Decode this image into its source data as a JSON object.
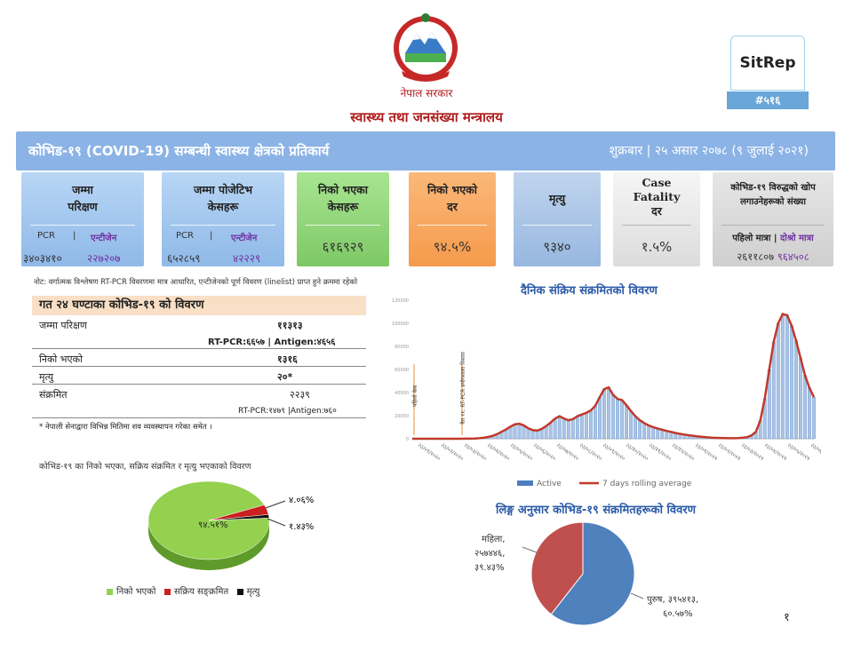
{
  "header": {
    "gov": "नेपाल सरकार",
    "ministry": "स्वास्थ्य तथा जनसंख्या मन्त्रालय"
  },
  "sitrep": {
    "label": "SitRep",
    "number": "#५१६"
  },
  "banner": {
    "title": "कोभिड-१९ (COVID-19) सम्बन्धी स्वास्थ्य क्षेत्रको प्रतिकार्य",
    "date": "शुक्रबार | २५ असार २०७८ (९ जुलाई २०२१)"
  },
  "cards": [
    {
      "h1": "जम्मा",
      "h2": "परिक्षण",
      "sub1": "PCR",
      "sub2": "एन्टीजेन",
      "v1": "३४०३४१०",
      "v2": "२२७२०७",
      "color": "#9fc5ee"
    },
    {
      "h1": "जम्मा पोजेटिभ",
      "h2": "केसहरू",
      "sub1": "PCR",
      "sub2": "एन्टीजेन",
      "v1": "६५२८५९",
      "v2": "४२२२९",
      "color": "#9fc5ee"
    },
    {
      "h1": "निको भएका",
      "h2": "केसहरू",
      "value": "६१६९२९",
      "color": "#8fd679"
    },
    {
      "h1": "निको भएको",
      "h2": "दर",
      "value": "९४.५%",
      "color": "#f9a05a"
    },
    {
      "h1": "मृत्यु",
      "h2": "",
      "value": "९३४०",
      "color": "#a7c1e4"
    },
    {
      "h1": "Case",
      "h2": "Fatality",
      "h3": "दर",
      "value": "१.५%",
      "color": "#e8e8e8"
    },
    {
      "h1": "कोभिड-१९ विरुद्धको खोप",
      "h2": "लगाउनेहरूको संख्या",
      "sub1": "पहिलो मात्रा",
      "sub2": "दोश्रो मात्रा",
      "v1": "२६११८०७",
      "v2": "९६४५०८",
      "color": "#dcdcdc"
    }
  ],
  "note": "नोट: वर्गात्मक विश्लेषण RT-PCR विवरणमा मात्र आधारित, एन्टीजेनको पूर्ण विवरण (linelist) प्राप्त हुने क्रममा रहेको",
  "table": {
    "title": "गत २४ घण्टाका कोभिड-१९ को विवरण",
    "rows": [
      {
        "label": "जम्मा परिक्षण",
        "value": "११३१३",
        "sub": "RT-PCR:६६५७ | Antigen:४६५६"
      },
      {
        "label": "निको भएको",
        "value": "१३१६"
      },
      {
        "label": "मृत्यु",
        "value": "२०*"
      },
      {
        "label": "संक्रमित",
        "value": "२२३९",
        "sub": "RT-PCR:१४७९ |Antigen:७६०"
      }
    ],
    "footnote": "* नेपाली सेनाद्वारा विभिन्न मितिमा शव व्यवस्थापन गरेका समेत ।"
  },
  "pie1": {
    "title": "कोभिड-१९ का निको भएका, सक्रिय संक्रमित र मृत्यु भएकाको विवरण",
    "legend": [
      "निको भएको",
      "सक्रिय सङ्क्रमित",
      "मृत्यु"
    ]
  },
  "linechart": {
    "title": "दैनिक संक्रिय संक्रमितको विवरण",
    "legend_active": "Active",
    "legend_avg": "7 days rolling average",
    "ann1": "पहिलो केस",
    "ann2": "चैत ११: RT-PCR प्रयोगशाला विस्तार"
  },
  "pie2": {
    "title": "लिङ्ग अनुसार कोभिड-१९ संक्रमितहरूको विवरण"
  },
  "page_number": "१",
  "chart_data": [
    {
      "type": "pie",
      "title": "कोभिड-१९ का निको भएका, सक्रिय संक्रमित र मृत्यु भएकाको विवरण",
      "slices": [
        {
          "name": "निको भएको",
          "value": 94.51,
          "label": "९४.५१%",
          "color": "#93d14f"
        },
        {
          "name": "सक्रिय सङ्क्रमित",
          "value": 4.06,
          "label": "४.०६%",
          "color": "#cc1f1f"
        },
        {
          "name": "मृत्यु",
          "value": 1.43,
          "label": "१.४३%",
          "color": "#111111"
        }
      ]
    },
    {
      "type": "area",
      "title": "दैनिक संक्रिय संक्रमितको विवरण",
      "series": [
        {
          "name": "Active",
          "color": "#4e7dbf"
        },
        {
          "name": "7 days rolling average",
          "color": "#c0392b"
        }
      ],
      "x_labels": [
        "२३/०१/२०२०",
        "२३/०२/२०२०",
        "२३/०३/२०२०",
        "२३/०४/२०२०",
        "२३/०५/२०२०",
        "२३/०६/२०२०",
        "२३/०७/२०२०",
        "२३/०८/२०२०",
        "२३/०९/२०२०",
        "२३/१०/२०२०",
        "२३/११/२०२०",
        "२३/१२/२०२०",
        "२३/०१/२०२१",
        "२३/०२/२०२१",
        "२३/०३/२०२१",
        "२३/०४/२०२१",
        "२३/०५/२०२१",
        "२३/०६/२०२१"
      ],
      "y_ticks": [
        "0",
        "20000",
        "40000",
        "60000",
        "80000",
        "100000",
        "120000"
      ],
      "ylim": [
        0,
        120000
      ],
      "values": [
        0,
        0,
        0,
        0,
        0,
        0,
        0,
        0,
        0,
        0,
        0,
        10,
        50,
        120,
        200,
        500,
        900,
        1600,
        2500,
        4000,
        6000,
        8000,
        10500,
        12500,
        13000,
        11500,
        9000,
        7500,
        7000,
        8500,
        11000,
        14000,
        17500,
        19500,
        17500,
        16000,
        17000,
        19500,
        21000,
        22500,
        24500,
        28500,
        36000,
        43000,
        44500,
        38000,
        34500,
        33500,
        29000,
        24000,
        19500,
        16000,
        13500,
        11500,
        10000,
        8800,
        7800,
        6800,
        5900,
        5000,
        4200,
        3600,
        3000,
        2500,
        2000,
        1600,
        1300,
        1000,
        800,
        650,
        550,
        500,
        500,
        600,
        900,
        1400,
        2800,
        6000,
        16000,
        35000,
        60000,
        84000,
        100000,
        108000,
        107000,
        98000,
        85000,
        70000,
        55000,
        44000,
        36000
      ],
      "annotations": [
        "पहिलो केस",
        "चैत ११: RT-PCR प्रयोगशाला विस्तार"
      ]
    },
    {
      "type": "pie",
      "title": "लिङ्ग अनुसार कोभिड-१९ संक्रमितहरूको विवरण",
      "slices": [
        {
          "name": "पुरुष",
          "value": 60.57,
          "count": "३९५४१३",
          "label": "पुरुष, ३९५४१३, ६०.५७%",
          "color": "#4f81bd"
        },
        {
          "name": "महिला",
          "value": 39.43,
          "count": "२५७४४६",
          "label": "महिला, २५७४४६, ३९.४३%",
          "color": "#c0504d"
        }
      ]
    }
  ]
}
